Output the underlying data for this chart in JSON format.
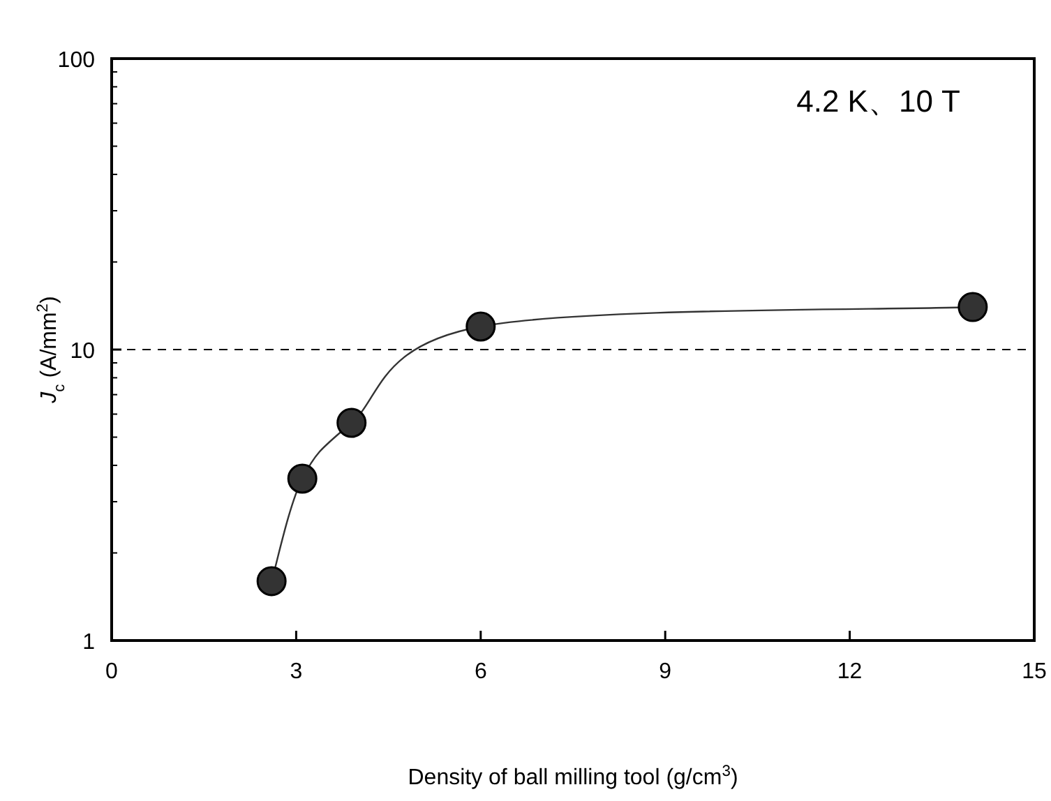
{
  "chart_data": {
    "type": "line",
    "xlabel": "Density of ball milling tool (g/cm$^{3}$)",
    "ylabel": "*J*$_{c}$ (A/mm$^{2}$)",
    "annotations": [
      "4.2 K、10 T"
    ],
    "x": [
      2.6,
      3.1,
      3.9,
      6,
      14
    ],
    "series": [
      {
        "color": "#333333",
        "values": [
          1.6,
          3.6,
          5.6,
          12,
          14
        ]
      }
    ],
    "xlim": [
      0,
      15
    ],
    "xticks": [
      0,
      3,
      6,
      9,
      12,
      15
    ],
    "ylim": [
      1,
      100
    ],
    "yticks": [
      1,
      10,
      100
    ],
    "log": "y",
    "marker": "circle",
    "ref_lines": [
      {
        "axis": "y",
        "value": 10,
        "line_style": "dashed",
        "color": "#000000"
      }
    ]
  }
}
